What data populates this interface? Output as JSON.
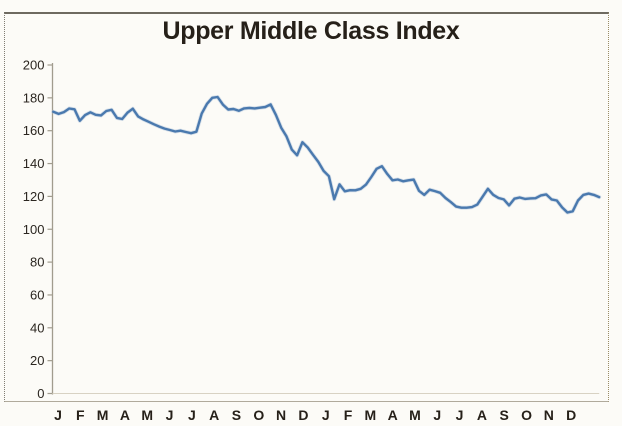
{
  "chart_data": {
    "type": "line",
    "title": "Upper Middle Class Index",
    "xlabel": "",
    "ylabel": "",
    "x_tick_labels": [
      "J",
      "F",
      "M",
      "A",
      "M",
      "J",
      "J",
      "A",
      "S",
      "O",
      "N",
      "D",
      "J",
      "F",
      "M",
      "A",
      "M",
      "J",
      "J",
      "A",
      "S",
      "O",
      "N",
      "D"
    ],
    "y_ticks": [
      0,
      20,
      40,
      60,
      80,
      100,
      120,
      140,
      160,
      180,
      200
    ],
    "ylim": [
      0,
      200
    ],
    "grid": false,
    "legend_position": "none",
    "line_color": "#4a79ae",
    "series": [
      {
        "name": "Upper Middle Class Index",
        "cadence": "weekly",
        "points_per_year": 52,
        "values": [
          171.5,
          170.2,
          171.3,
          173.5,
          173.0,
          166.0,
          169.5,
          171.2,
          169.7,
          169.3,
          172.0,
          172.7,
          167.8,
          167.1,
          171.0,
          173.4,
          168.7,
          166.9,
          165.4,
          163.9,
          162.5,
          161.3,
          160.4,
          159.5,
          160.0,
          159.2,
          158.5,
          159.4,
          170.4,
          176.4,
          180.0,
          180.5,
          175.9,
          172.9,
          173.2,
          172.1,
          173.6,
          173.9,
          173.6,
          174.0,
          174.4,
          176.0,
          169.6,
          161.8,
          156.5,
          148.5,
          145.0,
          153.0,
          149.8,
          145.3,
          141.0,
          135.5,
          132.3,
          118.3,
          127.3,
          123.1,
          123.8,
          123.7,
          124.6,
          127.2,
          131.8,
          136.8,
          138.4,
          133.7,
          129.8,
          130.3,
          129.2,
          129.8,
          130.2,
          123.4,
          120.9,
          124.1,
          123.2,
          122.2,
          119.0,
          116.5,
          113.8,
          113.1,
          113.1,
          113.5,
          115.0,
          119.8,
          124.6,
          121.0,
          119.0,
          118.2,
          114.5,
          118.6,
          119.3,
          118.5,
          118.8,
          118.9,
          120.6,
          121.2,
          118.2,
          117.5,
          113.3,
          110.2,
          110.9,
          117.5,
          120.9,
          121.7,
          120.9,
          119.6
        ]
      }
    ]
  },
  "style": {
    "background": "#fcfbf7",
    "text_color": "#262019",
    "axis_color": "#a19c8e",
    "baseline_color": "#d8d2c3",
    "line_halo": "#aabfd8"
  }
}
